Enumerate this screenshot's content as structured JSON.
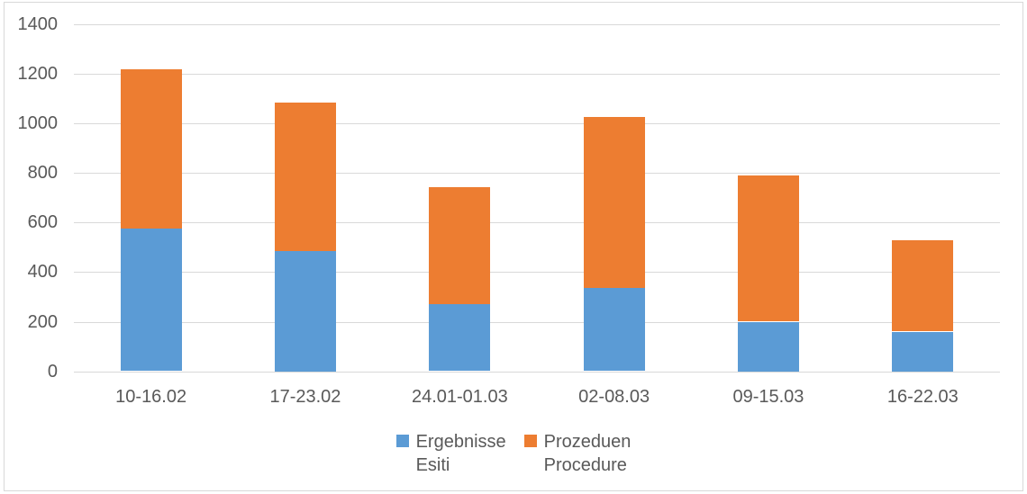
{
  "chart_data": {
    "type": "bar",
    "stacked": true,
    "title": "",
    "xlabel": "",
    "ylabel": "",
    "categories": [
      "10-16.02",
      "17-23.02",
      "24.01-01.03",
      "02-08.03",
      "09-15.03",
      "16-22.03"
    ],
    "series": [
      {
        "name": "Ergebnisse Esiti",
        "legend_lines": [
          "Ergebnisse",
          "Esiti"
        ],
        "color": "#5B9BD5",
        "values": [
          575,
          485,
          270,
          335,
          200,
          160
        ]
      },
      {
        "name": "Prozeduen Procedure",
        "legend_lines": [
          "Prozeduen",
          "Procedure"
        ],
        "color": "#ED7D31",
        "values": [
          645,
          600,
          475,
          690,
          590,
          370
        ]
      }
    ],
    "stack_totals": [
      1220,
      1085,
      745,
      1025,
      790,
      530
    ],
    "ylim": [
      0,
      1400
    ],
    "yticks": [
      0,
      200,
      400,
      600,
      800,
      1000,
      1200,
      1400
    ],
    "grid": true,
    "legend_position": "bottom",
    "colors": {
      "gridline": "#D9D9D9",
      "axis_text": "#595959",
      "border": "#D8D8D8",
      "background": "#FFFFFF"
    }
  }
}
